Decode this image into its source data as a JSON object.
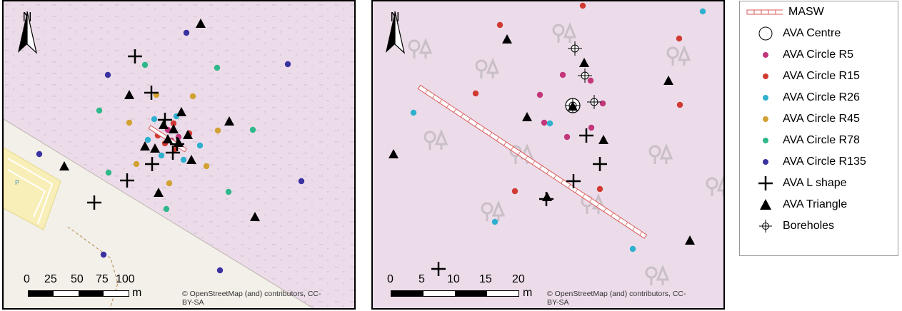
{
  "maps": {
    "left": {
      "north_label": "N",
      "scale_ticks": [
        "0",
        "25",
        "50",
        "75",
        "100"
      ],
      "scale_unit": "m",
      "attribution_line1": "© OpenStreetMap (and) contributors, CC-",
      "attribution_line2": "BY-SA",
      "parking_label": "P"
    },
    "right": {
      "north_label": "N",
      "scale_ticks": [
        "0",
        "5",
        "10",
        "15",
        "20"
      ],
      "scale_unit": "m",
      "attribution_line1": "© OpenStreetMap (and) contributors, CC-",
      "attribution_line2": "BY-SA"
    }
  },
  "legend": {
    "items": [
      {
        "label": "MASW",
        "symbol": "masw-line-icon"
      },
      {
        "label": "AVA Centre",
        "symbol": "open-circle-icon"
      },
      {
        "label": "AVA Circle R5",
        "symbol": "dot-icon",
        "color": "#c2367a"
      },
      {
        "label": "AVA Circle R15",
        "symbol": "dot-icon",
        "color": "#d13a32"
      },
      {
        "label": "AVA Circle R26",
        "symbol": "dot-icon",
        "color": "#2fb0cf"
      },
      {
        "label": "AVA Circle R45",
        "symbol": "dot-icon",
        "color": "#d1a132"
      },
      {
        "label": "AVA Circle R78",
        "symbol": "dot-icon",
        "color": "#2fb88a"
      },
      {
        "label": "AVA Circle R135",
        "symbol": "dot-icon",
        "color": "#3a32a0"
      },
      {
        "label": "AVA L shape",
        "symbol": "plus-icon"
      },
      {
        "label": "AVA Triangle",
        "symbol": "triangle-icon"
      },
      {
        "label": "Boreholes",
        "symbol": "crosshair-icon"
      }
    ]
  },
  "colors": {
    "land": "#ecdce9",
    "grass_pattern": "#c8b9c6",
    "road": "#f3efe9",
    "parking": "#f8eeb7",
    "masw": "#d95a5a",
    "r5": "#c2367a",
    "r15": "#d13a32",
    "r26": "#2fb0cf",
    "r45": "#d1a132",
    "r78": "#2fb88a",
    "r135": "#3a32a0"
  }
}
